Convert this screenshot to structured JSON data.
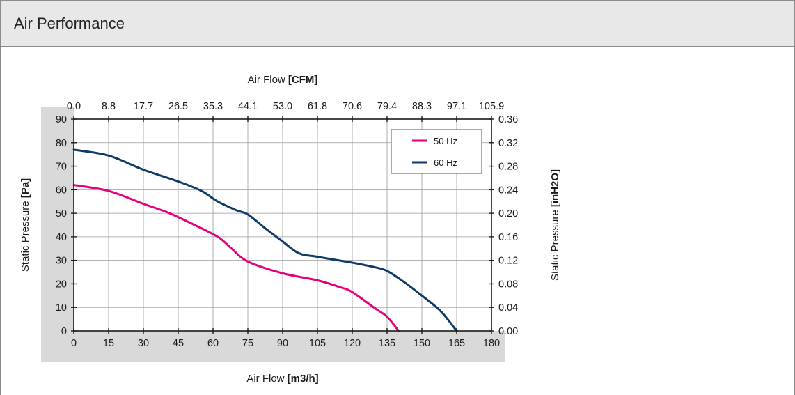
{
  "header": {
    "title": "Air Performance"
  },
  "colors": {
    "series_50": "#e6007e",
    "series_60": "#0d3a66",
    "grid": "#9a9a9a",
    "axis_band": "#d9d9d9",
    "header_bg": "#e8e8e8"
  },
  "chart_data": {
    "type": "line",
    "xlabel_bottom": {
      "text": "Air Flow ",
      "unit": "[m3/h]"
    },
    "xlabel_top": {
      "text": "Air Flow ",
      "unit": "[CFM]"
    },
    "ylabel_left": {
      "text": "Static Pressure ",
      "unit": "[Pa]"
    },
    "ylabel_right": {
      "text": "Static Pressure ",
      "unit": "[inH2O]"
    },
    "xlim": [
      0,
      180
    ],
    "ylim": [
      0,
      90
    ],
    "x_ticks": [
      "0",
      "15",
      "30",
      "45",
      "60",
      "75",
      "90",
      "105",
      "120",
      "135",
      "150",
      "165",
      "180"
    ],
    "y_ticks": [
      "0",
      "10",
      "20",
      "30",
      "40",
      "50",
      "60",
      "70",
      "80",
      "90"
    ],
    "x_top_ticks": [
      "0.0",
      "8.8",
      "17.7",
      "26.5",
      "35.3",
      "44.1",
      "53.0",
      "61.8",
      "70.6",
      "79.4",
      "88.3",
      "97.1",
      "105.9"
    ],
    "y_right_ticks": [
      "0.00",
      "0.04",
      "0.08",
      "0.12",
      "0.16",
      "0.20",
      "0.24",
      "0.28",
      "0.32",
      "0.36"
    ],
    "grid": true,
    "legend_position": "top-right",
    "series": [
      {
        "name": "50 Hz",
        "color": "#e6007e",
        "points": [
          [
            0,
            62
          ],
          [
            15,
            59.5
          ],
          [
            30,
            54
          ],
          [
            40,
            50.5
          ],
          [
            50,
            46
          ],
          [
            62,
            40
          ],
          [
            68,
            35
          ],
          [
            75,
            29.5
          ],
          [
            90,
            24.5
          ],
          [
            105,
            21.5
          ],
          [
            115,
            18.5
          ],
          [
            120,
            16.5
          ],
          [
            130,
            9.5
          ],
          [
            135,
            6
          ],
          [
            140,
            0
          ]
        ]
      },
      {
        "name": "60 Hz",
        "color": "#0d3a66",
        "points": [
          [
            0,
            77
          ],
          [
            15,
            74.5
          ],
          [
            30,
            68.5
          ],
          [
            45,
            63.5
          ],
          [
            55,
            59.5
          ],
          [
            62,
            55
          ],
          [
            70,
            51.3
          ],
          [
            75,
            49.5
          ],
          [
            82,
            44
          ],
          [
            90,
            38
          ],
          [
            97,
            33
          ],
          [
            105,
            31.5
          ],
          [
            120,
            29
          ],
          [
            130,
            27
          ],
          [
            135,
            25.5
          ],
          [
            142,
            21
          ],
          [
            150,
            15
          ],
          [
            158,
            8.5
          ],
          [
            165,
            0
          ]
        ]
      }
    ]
  }
}
